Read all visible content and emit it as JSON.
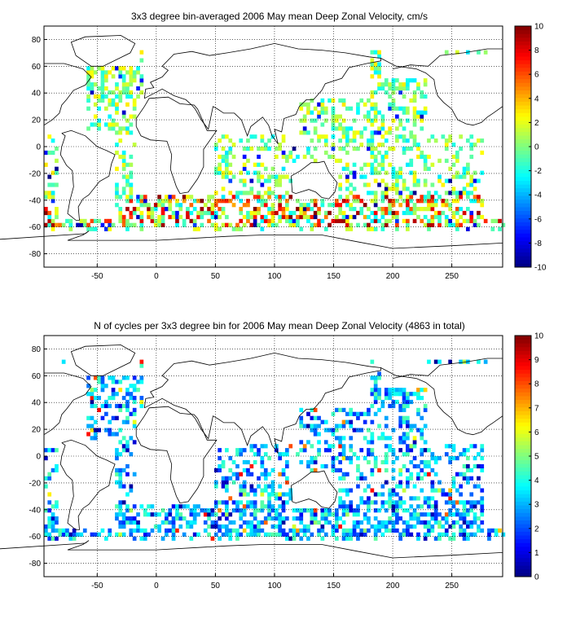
{
  "chart_data": [
    {
      "type": "heatmap",
      "title": "3x3 degree bin-averaged 2006 May mean Deep Zonal Velocity, cm/s",
      "x_ticks": [
        -50,
        0,
        50,
        100,
        150,
        200,
        250
      ],
      "y_ticks": [
        -80,
        -60,
        -40,
        -20,
        0,
        20,
        40,
        60,
        80
      ],
      "xlim": [
        -95,
        293
      ],
      "ylim": [
        -90,
        90
      ],
      "grid": true,
      "colormap": "jet",
      "colorbar": {
        "range": [
          -10,
          10
        ],
        "ticks": [
          -10,
          -8,
          -6,
          -4,
          -2,
          0,
          2,
          4,
          6,
          8,
          10
        ]
      },
      "bin_size_deg": 3,
      "cell_values_note_range": [
        -10,
        10
      ]
    },
    {
      "type": "heatmap",
      "title": "N of cycles per 3x3 degree bin for 2006 May mean Deep Zonal Velocity (4863 in total)",
      "x_ticks": [
        -50,
        0,
        50,
        100,
        150,
        200,
        250
      ],
      "y_ticks": [
        -80,
        -60,
        -40,
        -20,
        0,
        20,
        40,
        60,
        80
      ],
      "xlim": [
        -95,
        293
      ],
      "ylim": [
        -90,
        90
      ],
      "grid": true,
      "colormap": "jet",
      "colorbar": {
        "range": [
          0,
          10
        ],
        "ticks": [
          0,
          1,
          2,
          3,
          4,
          5,
          6,
          7,
          8,
          9,
          10
        ]
      },
      "bin_size_deg": 3
    }
  ]
}
